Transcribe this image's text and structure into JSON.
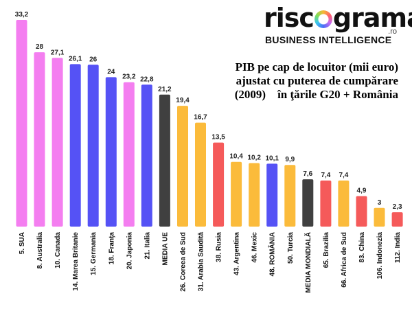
{
  "logo": {
    "text_left": "risc",
    "text_right": "grama",
    "suffix": ".ro",
    "tagline": "BUSINESS INTELLIGENCE"
  },
  "colors": {
    "pink": "#f47ef0",
    "blue": "#5552f5",
    "dark": "#404040",
    "orange": "#fbbb3b",
    "red": "#f55a5a"
  },
  "chart_data": {
    "type": "bar",
    "title": "PIB pe cap de locuitor (mii euro)\najustat cu puterea de cumpărare\n(2009)    în ţările G20 + România",
    "categories": [
      "5. SUA",
      "8. Australia",
      "10. Canada",
      "14. Marea Britanie",
      "15. Germania",
      "18. Franţa",
      "20. Japonia",
      "21. Italia",
      "MEDIA UE",
      "26. Coreea de Sud",
      "31. Arabia Saudită",
      "38. Rusia",
      "43. Argentina",
      "46. Mexic",
      "48. ROMÂNIA",
      "50. Turcia",
      "MEDIA MONDIALĂ",
      "65. Brazilia",
      "66. Africa de Sud",
      "83. China",
      "106. Indonezia",
      "112. India"
    ],
    "values": [
      33.2,
      28,
      27.1,
      26.1,
      26,
      24,
      23.2,
      22.8,
      21.2,
      19.4,
      16.7,
      13.5,
      10.4,
      10.2,
      10.1,
      9.9,
      7.6,
      7.4,
      7.4,
      4.9,
      3,
      2.3
    ],
    "value_labels": [
      "33,2",
      "28",
      "27,1",
      "26,1",
      "26",
      "24",
      "23,2",
      "22,8",
      "21,2",
      "19,4",
      "16,7",
      "13,5",
      "10,4",
      "10,2",
      "10,1",
      "9,9",
      "7,6",
      "7,4",
      "7,4",
      "4,9",
      "3",
      "2,3"
    ],
    "bar_colors": [
      "pink",
      "pink",
      "pink",
      "blue",
      "blue",
      "blue",
      "pink",
      "blue",
      "dark",
      "orange",
      "orange",
      "red",
      "orange",
      "orange",
      "blue",
      "orange",
      "dark",
      "red",
      "orange",
      "red",
      "orange",
      "red"
    ],
    "ylim": [
      0,
      33.2
    ],
    "grid": false,
    "legend": "none"
  }
}
